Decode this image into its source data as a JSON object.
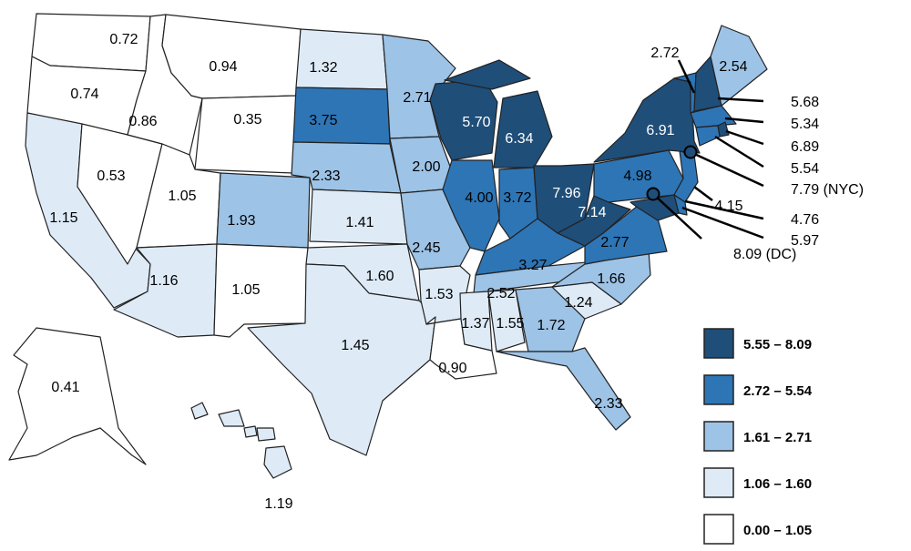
{
  "bins": [
    {
      "label": "5.55 – 8.09",
      "min": 5.55,
      "max": 8.09,
      "color": "#1f4e79"
    },
    {
      "label": "2.72 – 5.54",
      "min": 2.72,
      "max": 5.54,
      "color": "#2e75b6"
    },
    {
      "label": "1.61 – 2.71",
      "min": 1.61,
      "max": 2.71,
      "color": "#9dc3e6"
    },
    {
      "label": "1.06 – 1.60",
      "min": 1.06,
      "max": 1.6,
      "color": "#deebf7"
    },
    {
      "label": "0.00 – 1.05",
      "min": 0.0,
      "max": 1.05,
      "color": "#ffffff"
    }
  ],
  "states": [
    {
      "code": "WA",
      "value": "0.72"
    },
    {
      "code": "OR",
      "value": "0.74"
    },
    {
      "code": "CA",
      "value": "1.15"
    },
    {
      "code": "NV",
      "value": "0.53"
    },
    {
      "code": "ID",
      "value": "0.86"
    },
    {
      "code": "MT",
      "value": "0.94"
    },
    {
      "code": "WY",
      "value": "0.35"
    },
    {
      "code": "UT",
      "value": "1.05"
    },
    {
      "code": "CO",
      "value": "1.93"
    },
    {
      "code": "AZ",
      "value": "1.16"
    },
    {
      "code": "NM",
      "value": "1.05"
    },
    {
      "code": "ND",
      "value": "1.32"
    },
    {
      "code": "SD",
      "value": "3.75"
    },
    {
      "code": "NE",
      "value": "2.33"
    },
    {
      "code": "KS",
      "value": "1.41"
    },
    {
      "code": "OK",
      "value": "1.60"
    },
    {
      "code": "TX",
      "value": "1.45"
    },
    {
      "code": "MN",
      "value": "2.71"
    },
    {
      "code": "IA",
      "value": "2.00"
    },
    {
      "code": "MO",
      "value": "2.45"
    },
    {
      "code": "AR",
      "value": "1.53"
    },
    {
      "code": "LA",
      "value": "0.90"
    },
    {
      "code": "WI",
      "value": "5.70"
    },
    {
      "code": "MI",
      "value": "6.34"
    },
    {
      "code": "IL",
      "value": "4.00"
    },
    {
      "code": "IN",
      "value": "3.72"
    },
    {
      "code": "OH",
      "value": "7.96"
    },
    {
      "code": "KY",
      "value": "3.27"
    },
    {
      "code": "TN",
      "value": "2.52"
    },
    {
      "code": "MS",
      "value": "1.37"
    },
    {
      "code": "AL",
      "value": "1.55"
    },
    {
      "code": "GA",
      "value": "1.72"
    },
    {
      "code": "FL",
      "value": "2.33"
    },
    {
      "code": "SC",
      "value": "1.24"
    },
    {
      "code": "NC",
      "value": "1.66"
    },
    {
      "code": "VA",
      "value": "2.77"
    },
    {
      "code": "WV",
      "value": "7.14"
    },
    {
      "code": "PA",
      "value": "4.98"
    },
    {
      "code": "NY",
      "value": "6.91"
    },
    {
      "code": "VT",
      "value": "2.72"
    },
    {
      "code": "NH",
      "value": "5.68"
    },
    {
      "code": "ME",
      "value": "2.54"
    },
    {
      "code": "MA",
      "value": "5.34"
    },
    {
      "code": "RI",
      "value": "6.89"
    },
    {
      "code": "CT",
      "value": "5.54"
    },
    {
      "code": "NJ",
      "value": "4.15"
    },
    {
      "code": "DE",
      "value": "4.76"
    },
    {
      "code": "MD",
      "value": "5.97"
    },
    {
      "code": "AK",
      "value": "0.41"
    },
    {
      "code": "HI",
      "value": "1.19"
    }
  ],
  "cities": [
    {
      "code": "NYC",
      "value": "7.79",
      "label": "7.79 (NYC)"
    },
    {
      "code": "DC",
      "value": "8.09",
      "label": "8.09 (DC)"
    }
  ]
}
